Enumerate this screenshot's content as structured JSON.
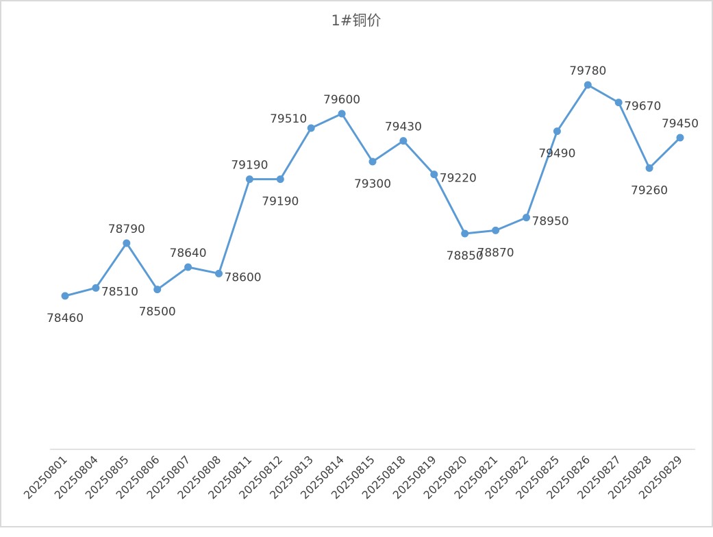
{
  "chart_data": {
    "type": "line",
    "title": "1#铜价",
    "xlabel": "",
    "ylabel": "",
    "categories": [
      "20250801",
      "20250804",
      "20250805",
      "20250806",
      "20250807",
      "20250808",
      "20250811",
      "20250812",
      "20250813",
      "20250814",
      "20250815",
      "20250818",
      "20250819",
      "20250820",
      "20250821",
      "20250822",
      "20250825",
      "20250826",
      "20250827",
      "20250828",
      "20250829"
    ],
    "series": [
      {
        "name": "1#铜价",
        "values": [
          78460,
          78510,
          78790,
          78500,
          78640,
          78600,
          79190,
          79190,
          79510,
          79600,
          79300,
          79430,
          79220,
          78850,
          78870,
          78950,
          79490,
          79780,
          79670,
          79260,
          79450
        ]
      }
    ],
    "label_positions": [
      "below",
      "right",
      "above",
      "below",
      "above",
      "right",
      "above",
      "below",
      "left",
      "above",
      "below",
      "above",
      "right",
      "below",
      "below",
      "right",
      "below",
      "above",
      "right",
      "below",
      "above"
    ],
    "grid": false,
    "legend": "none",
    "drop_lines": true,
    "colors": {
      "line": "#5b9bd5",
      "drop_line": "#bdd7ee",
      "axis": "#d9d9d9",
      "text": "#404040"
    }
  }
}
